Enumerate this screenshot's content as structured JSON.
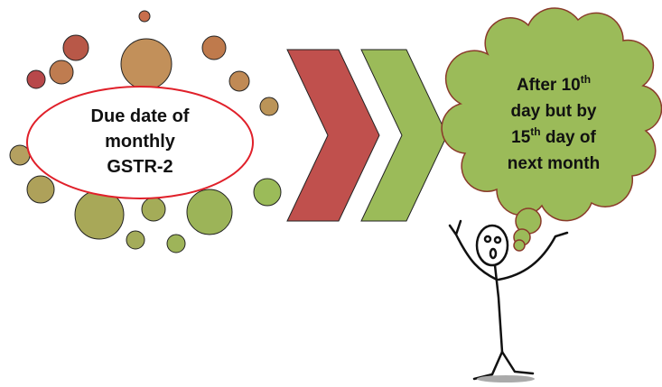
{
  "left_label": {
    "lines": [
      "Due date of",
      "monthly",
      "GSTR-2"
    ]
  },
  "cloud_text": {
    "lines": [
      [
        {
          "text": "After 10"
        },
        {
          "text": "th",
          "sup": true
        }
      ],
      [
        {
          "text": "day but by"
        }
      ],
      [
        {
          "text": "15"
        },
        {
          "text": "th",
          "sup": true
        },
        {
          "text": " day of"
        }
      ],
      [
        {
          "text": "next month"
        }
      ]
    ]
  }
}
